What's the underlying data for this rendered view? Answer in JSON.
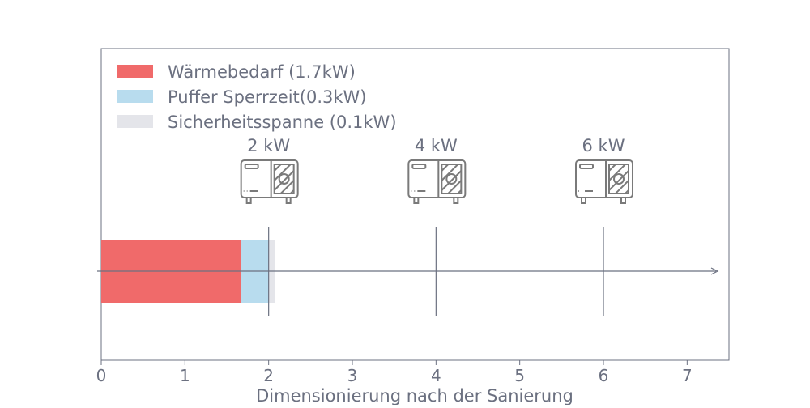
{
  "chart_data": {
    "type": "bar",
    "orientation": "horizontal-stacked",
    "xlabel": "Dimensionierung nach der Sanierung",
    "xlim": [
      0,
      7.5
    ],
    "xticks": [
      "0",
      "1",
      "2",
      "3",
      "4",
      "5",
      "6",
      "7"
    ],
    "grid": false,
    "legend_position": "top-left",
    "series": [
      {
        "name": "Wärmebedarf (1.7kW)",
        "value": 1.67,
        "color": "#f06a6a"
      },
      {
        "name": "Puffer Sperrzeit(0.3kW)",
        "value": 0.33,
        "color": "#b8dcee"
      },
      {
        "name": "Sicherheitsspanne (0.1kW)",
        "value": 0.08,
        "color": "#e4e5ea"
      }
    ],
    "markers": [
      {
        "x": 2,
        "label": "2 kW",
        "icon": "heat-pump-icon"
      },
      {
        "x": 4,
        "label": "4 kW",
        "icon": "heat-pump-icon"
      },
      {
        "x": 6,
        "label": "6 kW",
        "icon": "heat-pump-icon"
      }
    ],
    "axis_color": "#6b7080"
  }
}
